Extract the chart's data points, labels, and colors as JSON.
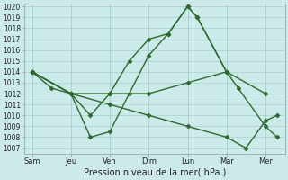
{
  "x_labels": [
    "Sam",
    "Jeu",
    "Ven",
    "Dim",
    "Lun",
    "Mar",
    "Mer"
  ],
  "x_tick_pos": [
    0,
    1,
    2,
    3,
    4,
    5,
    6
  ],
  "series": [
    {
      "x": [
        0,
        0.5,
        1,
        1.5,
        2,
        2.5,
        3,
        3.5,
        4,
        4.25,
        5
      ],
      "y": [
        1014,
        1012.5,
        1012,
        1010,
        1012,
        1015,
        1017,
        1017.5,
        1020,
        1019,
        1014
      ]
    },
    {
      "x": [
        0,
        1,
        2,
        3,
        4,
        5,
        6
      ],
      "y": [
        1014,
        1012,
        1012,
        1012,
        1013,
        1014,
        1012
      ]
    },
    {
      "x": [
        0,
        1,
        2,
        3,
        4,
        5,
        5.5,
        6,
        6.3
      ],
      "y": [
        1014,
        1012,
        1011,
        1010,
        1009,
        1008,
        1007,
        1009.5,
        1010
      ]
    },
    {
      "x": [
        0,
        1,
        1.5,
        2,
        2.5,
        3,
        3.5,
        4,
        4.25,
        5,
        5.3,
        6,
        6.3
      ],
      "y": [
        1014,
        1012,
        1008,
        1008.5,
        1012,
        1015.5,
        1017.5,
        1020,
        1019,
        1014,
        1012.5,
        1009,
        1008
      ]
    }
  ],
  "ylim_min": 1007,
  "ylim_max": 1020,
  "yticks": [
    1007,
    1008,
    1009,
    1010,
    1011,
    1012,
    1013,
    1014,
    1015,
    1016,
    1017,
    1018,
    1019,
    1020
  ],
  "xlabel": "Pression niveau de la mer( hPa )",
  "line_color": "#2d6a2d",
  "bg_color": "#cdeaea",
  "grid_color": "#a8cece",
  "marker_symbol": "D",
  "marker_size": 2.5,
  "line_width": 1.0,
  "figsize": [
    3.2,
    2.0
  ],
  "dpi": 100
}
